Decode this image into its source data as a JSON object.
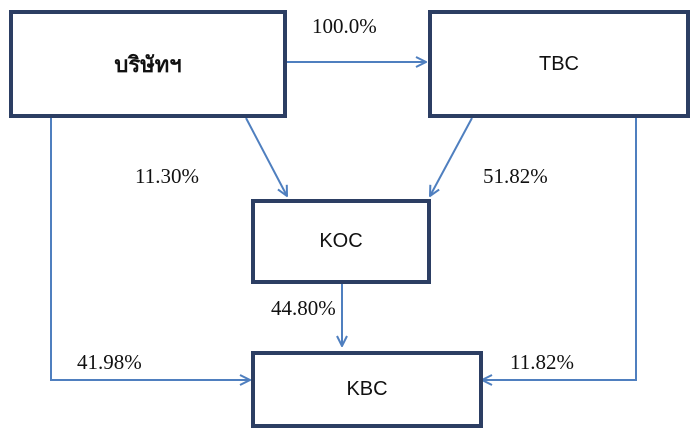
{
  "nodes": {
    "company": "บริษัทฯ",
    "tbc": "TBC",
    "koc": "KOC",
    "kbc": "KBC"
  },
  "links": {
    "company_to_tbc": "100.0%",
    "company_to_koc": "11.30%",
    "tbc_to_koc": "51.82%",
    "koc_to_kbc": "44.80%",
    "company_to_kbc": "41.98%",
    "tbc_to_kbc": "11.82%"
  },
  "colors": {
    "box_border": "#2c3e63",
    "arrow": "#4f7fbf"
  }
}
